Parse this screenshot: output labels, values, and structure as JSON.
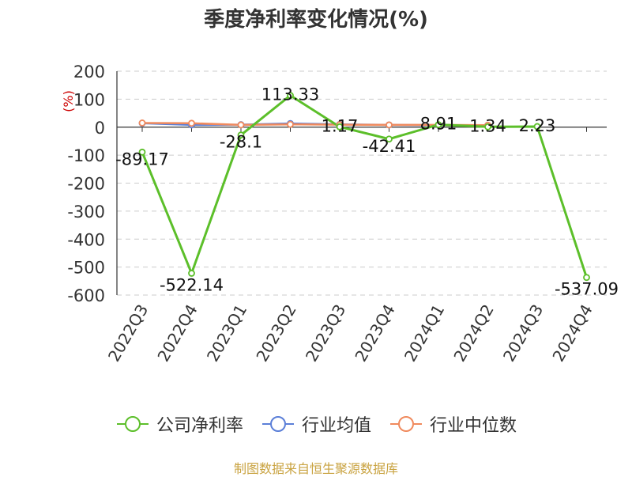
{
  "title": "季度净利率变化情况(%)",
  "source": "制图数据来自恒生聚源数据库",
  "chart_data": {
    "type": "line",
    "title": "季度净利率变化情况(%)",
    "ylabel": "(%)",
    "ylim": [
      -600,
      200
    ],
    "yticks": [
      200,
      100,
      0,
      -100,
      -200,
      -300,
      -400,
      -500,
      -600
    ],
    "grid": true,
    "legend_position": "bottom",
    "categories": [
      "2022Q3",
      "2022Q4",
      "2023Q1",
      "2023Q2",
      "2023Q3",
      "2023Q4",
      "2024Q1",
      "2024Q2",
      "2024Q3",
      "2024Q4"
    ],
    "series": [
      {
        "name": "公司净利率",
        "color": "#5cbf2a",
        "values": [
          -89.17,
          -522.14,
          -28.1,
          113.33,
          1.17,
          -42.41,
          8.91,
          1.34,
          2.23,
          -537.09
        ],
        "labels": [
          "-89.17",
          "-522.14",
          "-28.1",
          "113.33",
          "1.17",
          "-42.41",
          "8.91",
          "1.34",
          "2.23",
          "-537.09"
        ]
      },
      {
        "name": "行业均值",
        "color": "#5b7fd8",
        "values": [
          14,
          8,
          9,
          13,
          10,
          8,
          7,
          7,
          null,
          null
        ]
      },
      {
        "name": "行业中位数",
        "color": "#f08a5d",
        "values": [
          15,
          14,
          8,
          10,
          9,
          8,
          8,
          7,
          null,
          null
        ]
      }
    ]
  }
}
